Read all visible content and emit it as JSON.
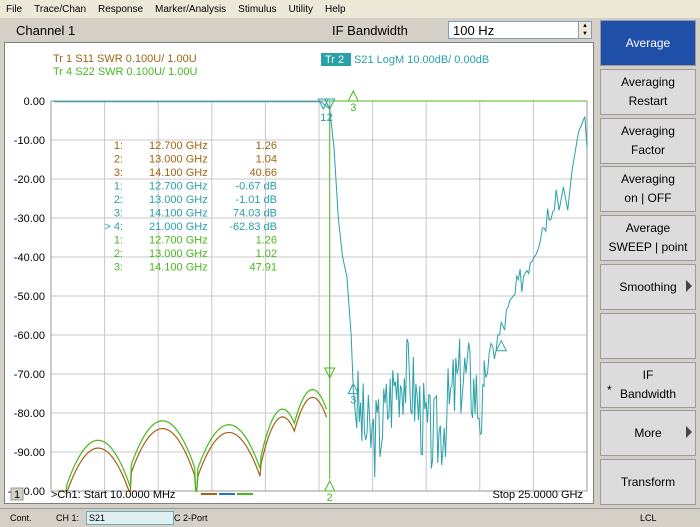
{
  "menu": [
    "File",
    "Trace/Chan",
    "Response",
    "Marker/Analysis",
    "Stimulus",
    "Utility",
    "Help"
  ],
  "channel": {
    "title": "Channel 1",
    "ifbw_label": "IF Bandwidth",
    "ifbw_value": "100 Hz"
  },
  "traces": [
    {
      "label": "Tr  1  S11 SWR 0.100U/  1.00U",
      "color": "#a06414"
    },
    {
      "label": "Tr  4  S22 SWR 0.100U/  1.00U",
      "color": "#48b81e"
    },
    {
      "label": "Tr  2  S21 LogM 10.00dB/  0.00dB",
      "color": "#2aa0a8"
    }
  ],
  "yaxis": {
    "ticks": [
      "0.00",
      "-10.00",
      "-20.00",
      "-30.00",
      "-40.00",
      "-50.00",
      "-60.00",
      "-70.00",
      "-80.00",
      "-90.00",
      "-100.00"
    ]
  },
  "markers": [
    {
      "n": "1:",
      "f": "12.700 GHz",
      "v": "1.26",
      "color": "#a06414"
    },
    {
      "n": "2:",
      "f": "13.000 GHz",
      "v": "1.04",
      "color": "#a06414"
    },
    {
      "n": "3:",
      "f": "14.100 GHz",
      "v": "40.66",
      "color": "#a06414"
    },
    {
      "n": "1:",
      "f": "12.700 GHz",
      "v": "-0.67 dB",
      "color": "#2aa0a8"
    },
    {
      "n": "2:",
      "f": "13.000 GHz",
      "v": "-1.01 dB",
      "color": "#2aa0a8"
    },
    {
      "n": "3:",
      "f": "14.100 GHz",
      "v": "74.03 dB",
      "color": "#2aa0a8"
    },
    {
      "n": "> 4:",
      "f": "21.000 GHz",
      "v": "-62.83 dB",
      "color": "#2aa0a8"
    },
    {
      "n": "1:",
      "f": "12.700 GHz",
      "v": "1.26",
      "color": "#48b81e"
    },
    {
      "n": "2:",
      "f": "13.000 GHz",
      "v": "1.02",
      "color": "#48b81e"
    },
    {
      "n": "3:",
      "f": "14.100 GHz",
      "v": "47.91",
      "color": "#48b81e"
    }
  ],
  "bottom": {
    "win": "1",
    "start": ">Ch1: Start  10.0000 MHz",
    "stop": "Stop  25.0000 GHz"
  },
  "softkeys": [
    {
      "label": "Average",
      "active": true
    },
    {
      "label": "Averaging\nRestart"
    },
    {
      "label": "Averaging\nFactor"
    },
    {
      "label": "Averaging\non | OFF"
    },
    {
      "label": "Average\nSWEEP | point"
    },
    {
      "label": "Smoothing",
      "arrow": true
    },
    {
      "label": ""
    },
    {
      "label": "IF\nBandwidth",
      "star": "*"
    },
    {
      "label": "More",
      "arrow": true
    },
    {
      "label": "Transform"
    }
  ],
  "status": {
    "cont": "Cont.",
    "ch": "CH 1:",
    "param": "S21",
    "cal": "C  2-Port",
    "lcl": "LCL"
  },
  "colors": {
    "s11": "#a06414",
    "s22": "#48b81e",
    "s21": "#2aa0a8",
    "grid": "#c8c8c8"
  }
}
